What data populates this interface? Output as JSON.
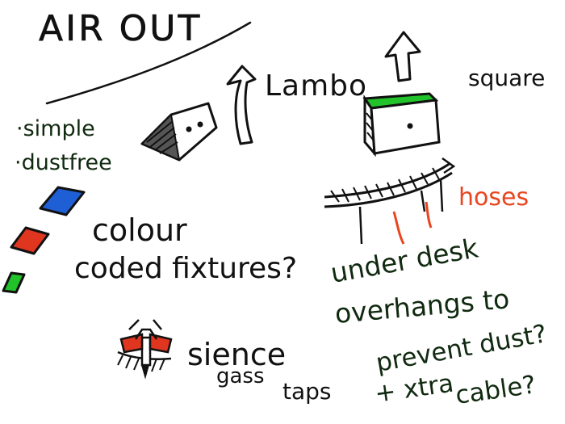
{
  "title": "AIR OUT",
  "notes": {
    "bullet_1": "·simple",
    "bullet_2": "·dustfree",
    "lambo": "Lambo",
    "square": "square",
    "colour_line_1": "colour",
    "colour_line_2": "coded fixtures?",
    "hoses": "hoses",
    "under_1": "under desk",
    "under_2": "overhangs to",
    "under_3": "prevent dust?",
    "under_4": "+ xtra",
    "under_5": "cable?",
    "sience": "sience",
    "gass": "gass",
    "taps": "taps"
  },
  "colors": {
    "ink": "#111111",
    "dark_green_ink": "#102a10",
    "blue": "#1f5fd6",
    "red": "#e0351f",
    "green": "#22c22a",
    "hoses": "#e8461f"
  },
  "icons": {
    "lambo_fixture": "wedge-fixture-icon",
    "square_fixture": "box-fixture-icon",
    "desk": "desk-icon",
    "tap": "gas-tap-icon"
  }
}
